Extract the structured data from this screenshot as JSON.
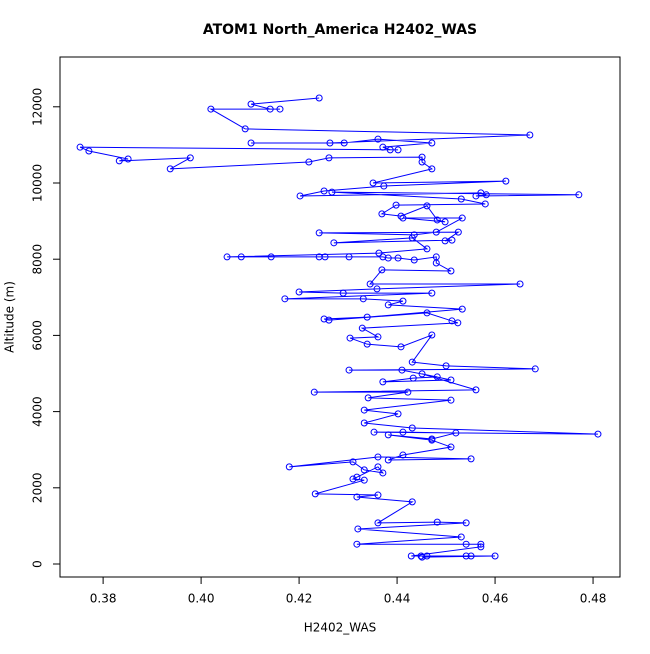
{
  "chart_data": {
    "type": "line",
    "title": "ATOM1 North_America H2402_WAS",
    "x_label": "H2402_WAS",
    "y_label": "Altitude (m)",
    "color": "#0000ff",
    "xlim": [
      0.3712,
      0.4855
    ],
    "ylim": [
      -341,
      13307
    ],
    "xticks": [
      0.38,
      {
        "value": 0.4,
        "label": "0.40"
      },
      0.42,
      0.44,
      0.46,
      0.48
    ],
    "yticks": [
      0,
      2000,
      4000,
      6000,
      8000,
      10000,
      12000
    ],
    "x": [
      0.4241,
      0.4102,
      0.4141,
      0.4161,
      0.402,
      0.409,
      0.4671,
      0.4263,
      0.4102,
      0.4292,
      0.4361,
      0.4471,
      0.4371,
      0.4386,
      0.4402,
      0.3753,
      0.3771,
      0.3851,
      0.3833,
      0.3978,
      0.3937,
      0.422,
      0.4261,
      0.4451,
      0.4451,
      0.4471,
      0.4351,
      0.4622,
      0.4373,
      0.4251,
      0.4202,
      0.4571,
      0.4582,
      0.4561,
      0.4771,
      0.4267,
      0.4531,
      0.458,
      0.4398,
      0.4369,
      0.4408,
      0.4461,
      0.4482,
      0.4498,
      0.4412,
      0.4533,
      0.448,
      0.4435,
      0.4241,
      0.4525,
      0.4498,
      0.4512,
      0.4271,
      0.4431,
      0.4461,
      0.4363,
      0.4053,
      0.4082,
      0.4143,
      0.4241,
      0.4253,
      0.4302,
      0.4371,
      0.4382,
      0.4402,
      0.4435,
      0.448,
      0.448,
      0.451,
      0.4369,
      0.4345,
      0.4651,
      0.4359,
      0.42,
      0.429,
      0.4471,
      0.4171,
      0.4331,
      0.4412,
      0.4382,
      0.4533,
      0.4339,
      0.4251,
      0.4261,
      0.4461,
      0.4512,
      0.4524,
      0.4329,
      0.4361,
      0.4304,
      0.4339,
      0.4408,
      0.4471,
      0.4431,
      0.45,
      0.4682,
      0.4302,
      0.441,
      0.4482,
      0.4433,
      0.4371,
      0.451,
      0.4451,
      0.4561,
      0.4231,
      0.4422,
      0.4341,
      0.451,
      0.4333,
      0.4402,
      0.4333,
      0.4431,
      0.481,
      0.4353,
      0.4412,
      0.452,
      0.4471,
      0.4382,
      0.4471,
      0.451,
      0.4412,
      0.4382,
      0.4551,
      0.4361,
      0.418,
      0.431,
      0.4333,
      0.4371,
      0.4361,
      0.4318,
      0.431,
      0.4333,
      0.4233,
      0.4361,
      0.4318,
      0.4431,
      0.4361,
      0.4482,
      0.4541,
      0.432,
      0.4531,
      0.4318,
      0.4541,
      0.4571,
      0.4571,
      0.4429,
      0.4449,
      0.4461,
      0.4541,
      0.4551,
      0.46,
      0.4451
    ],
    "values": [
      12230,
      12070,
      11940,
      11940,
      11940,
      11420,
      11260,
      11050,
      11050,
      11050,
      11150,
      11050,
      10940,
      10870,
      10870,
      10940,
      10840,
      10630,
      10580,
      10660,
      10370,
      10550,
      10660,
      10680,
      10550,
      10370,
      10000,
      10050,
      9920,
      9790,
      9660,
      9740,
      9690,
      9660,
      9690,
      9760,
      9580,
      9450,
      9420,
      9190,
      9130,
      9400,
      9030,
      8980,
      9080,
      9080,
      8710,
      8640,
      8690,
      8710,
      8480,
      8500,
      8430,
      8560,
      8270,
      8160,
      8060,
      8060,
      8060,
      8060,
      8060,
      8060,
      8060,
      8030,
      8030,
      7980,
      8060,
      7900,
      7690,
      7720,
      7350,
      7350,
      7220,
      7140,
      7110,
      7110,
      6960,
      6960,
      6900,
      6800,
      6690,
      6480,
      6430,
      6400,
      6590,
      6380,
      6330,
      6190,
      5960,
      5930,
      5770,
      5700,
      6010,
      5300,
      5200,
      5120,
      5090,
      5090,
      4910,
      4880,
      4780,
      4830,
      4990,
      4570,
      4510,
      4510,
      4360,
      4300,
      4040,
      3940,
      3700,
      3570,
      3410,
      3460,
      3460,
      3440,
      3280,
      3390,
      3250,
      3070,
      2860,
      2730,
      2760,
      2810,
      2550,
      2680,
      2470,
      2390,
      2550,
      2280,
      2230,
      2200,
      1840,
      1810,
      1760,
      1630,
      1080,
      1100,
      1080,
      920,
      710,
      520,
      520,
      520,
      450,
      210,
      210,
      210,
      210,
      210,
      210,
      180
    ]
  }
}
